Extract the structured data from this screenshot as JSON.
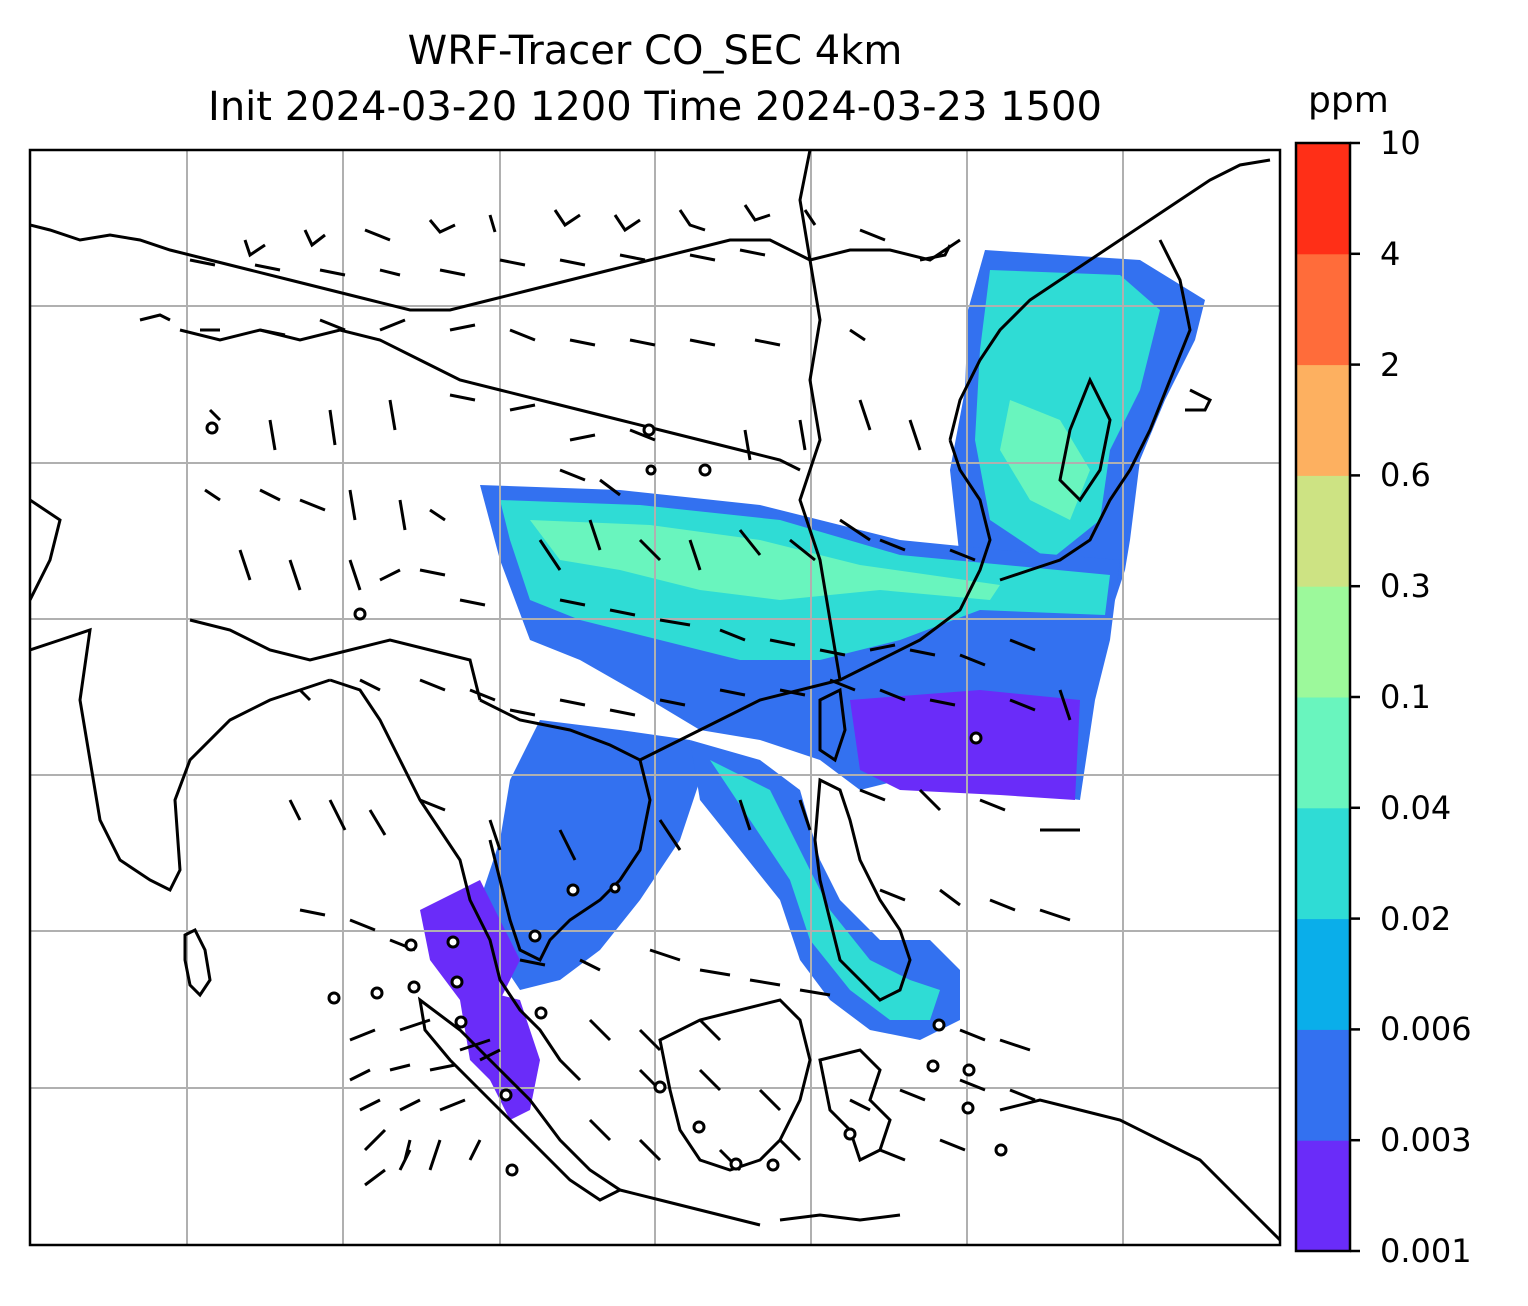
{
  "title": {
    "line1": "WRF-Tracer CO_SEC 4km",
    "line2": "Init 2024-03-20 1200 Time 2024-03-23 1500"
  },
  "colorbar": {
    "unit": "ppm",
    "ticks": [
      "0.001",
      "0.003",
      "0.006",
      "0.02",
      "0.04",
      "0.1",
      "0.3",
      "0.6",
      "2",
      "4",
      "10"
    ],
    "colors": [
      "#6a2cf9",
      "#3371f0",
      "#0aaeea",
      "#2fdcd5",
      "#69f5be",
      "#9cf99b",
      "#cde383",
      "#fdb060",
      "#ff6c3a",
      "#ff2f17"
    ]
  },
  "map": {
    "features": [
      "coastlines",
      "country-borders",
      "gridlines",
      "wind-barbs",
      "tracer-concentration"
    ]
  }
}
